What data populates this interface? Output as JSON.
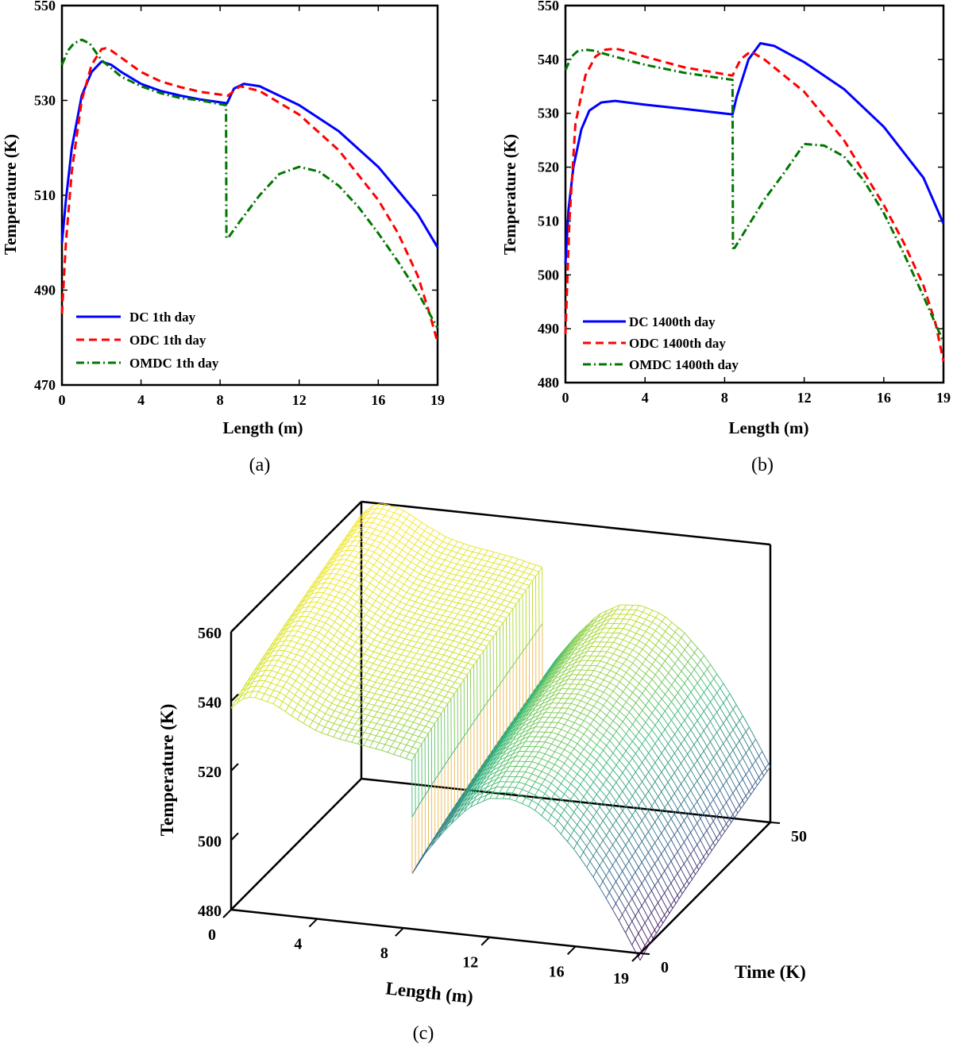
{
  "chart_data": [
    {
      "type": "line",
      "panel": "a",
      "caption": "(a)",
      "xlabel": "Length (m)",
      "ylabel": "Temperature (K)",
      "xlim": [
        0,
        19
      ],
      "ylim": [
        470,
        550
      ],
      "xticks": [
        0,
        4,
        8,
        12,
        16,
        19
      ],
      "yticks": [
        470,
        490,
        510,
        530,
        550
      ],
      "legend_position": "bottom-left",
      "series": [
        {
          "name": "DC 1th day",
          "color": "#0000ff",
          "style": "solid",
          "x": [
            0,
            0.2,
            0.5,
            1,
            1.5,
            2,
            2.5,
            3,
            4,
            5,
            6,
            7,
            8.35,
            8.7,
            9.2,
            10,
            12,
            14,
            16,
            18,
            19
          ],
          "y": [
            500,
            509,
            520,
            531,
            536,
            538.2,
            537.5,
            536,
            533.5,
            532,
            531,
            530.2,
            529.4,
            532.5,
            533.5,
            533,
            529,
            523.5,
            516,
            506,
            499
          ]
        },
        {
          "name": "ODC 1th day",
          "color": "#ff0000",
          "style": "dashed",
          "x": [
            0,
            0.2,
            0.5,
            1,
            1.5,
            2,
            2.2,
            2.5,
            3,
            4,
            5,
            6,
            7,
            8.4,
            9,
            10,
            12,
            14,
            16,
            17,
            18,
            18.6,
            19
          ],
          "y": [
            485,
            500,
            515,
            530,
            537.5,
            540.8,
            541,
            540.5,
            539,
            536,
            534,
            532.8,
            531.8,
            531,
            533,
            532,
            527,
            519.5,
            509,
            502,
            493,
            485,
            479
          ]
        },
        {
          "name": "OMDC 1th day",
          "color": "#007700",
          "style": "dashdot",
          "x": [
            0,
            0.3,
            0.6,
            1,
            1.4,
            2,
            3,
            4,
            5,
            6,
            7,
            8.3,
            8.32,
            8.4,
            9,
            10,
            11,
            12,
            13,
            14,
            15,
            16,
            17,
            18,
            19
          ],
          "y": [
            537.5,
            540.5,
            542,
            542.8,
            542,
            538.5,
            535,
            533,
            531.5,
            530.5,
            530,
            529,
            501,
            501,
            504.5,
            510,
            514.5,
            516,
            515,
            512,
            507.5,
            502,
            496,
            489.5,
            482
          ]
        }
      ]
    },
    {
      "type": "line",
      "panel": "b",
      "caption": "(b)",
      "xlabel": "Length (m)",
      "ylabel": "Temperature (K)",
      "xlim": [
        0,
        19
      ],
      "ylim": [
        480,
        550
      ],
      "xticks": [
        0,
        4,
        8,
        12,
        16,
        19
      ],
      "yticks": [
        480,
        490,
        500,
        510,
        520,
        530,
        540,
        550
      ],
      "legend_position": "bottom-left",
      "series": [
        {
          "name": "DC 1400th day",
          "color": "#0000ff",
          "style": "solid",
          "x": [
            0,
            0.15,
            0.4,
            0.8,
            1.2,
            1.8,
            2.5,
            4,
            6,
            8.4,
            8.6,
            9.2,
            9.8,
            10.5,
            12,
            14,
            16,
            18,
            19
          ],
          "y": [
            502,
            512,
            520,
            527,
            530.5,
            532,
            532.3,
            531.6,
            530.8,
            529.8,
            533,
            540,
            543,
            542.5,
            539.5,
            534.5,
            527.5,
            518,
            509.5
          ]
        },
        {
          "name": "ODC 1400th day",
          "color": "#ff0000",
          "style": "dashed",
          "x": [
            0,
            0.2,
            0.5,
            1,
            1.5,
            2,
            2.5,
            3,
            4,
            6,
            8.4,
            8.8,
            9.3,
            10,
            12,
            14,
            16,
            17,
            18,
            18.6,
            19
          ],
          "y": [
            489,
            510,
            528,
            537,
            540.5,
            541.8,
            542,
            541.6,
            540.5,
            538.5,
            537,
            540,
            541.5,
            540,
            534,
            525,
            513,
            506,
            498,
            491,
            484
          ]
        },
        {
          "name": "OMDC 1400th day",
          "color": "#007700",
          "style": "dashdot",
          "x": [
            0,
            0.3,
            0.6,
            1,
            1.5,
            2,
            3,
            4,
            6,
            8.4,
            8.42,
            8.5,
            9,
            10,
            11,
            12,
            13,
            14,
            15,
            16,
            17,
            18,
            19
          ],
          "y": [
            538,
            540.5,
            541.5,
            541.8,
            541.6,
            541,
            540,
            539,
            537.5,
            536.2,
            505,
            505,
            508,
            514,
            519,
            524.3,
            524,
            522,
            517.5,
            511.5,
            504,
            496,
            487.5
          ]
        }
      ]
    },
    {
      "type": "surface",
      "panel": "c",
      "caption": "(c)",
      "xlabel": "Length (m)",
      "ylabel": "Time (K)",
      "zlabel": "Temperature (K)",
      "xlim": [
        0,
        19
      ],
      "ylim": [
        0,
        50
      ],
      "zlim": [
        480,
        560
      ],
      "xticks": [
        0,
        4,
        8,
        12,
        16,
        19
      ],
      "yticks": [
        0,
        50
      ],
      "zticks": [
        480,
        500,
        520,
        540,
        560
      ],
      "colormap": [
        "#440154",
        "#31688e",
        "#35b779",
        "#c8e020",
        "#fde725"
      ],
      "profile": {
        "x": [
          0,
          0.5,
          1,
          2,
          3,
          4,
          5,
          6,
          7,
          8.4,
          8.42,
          9,
          10,
          11,
          12,
          13,
          14,
          15,
          16,
          17,
          18,
          19
        ],
        "z": [
          538,
          541,
          542,
          540.5,
          537,
          534,
          532.5,
          531.5,
          530.5,
          528.5,
          496,
          502,
          510,
          516.5,
          520,
          520.5,
          518.5,
          514,
          507.5,
          499,
          489,
          478
        ]
      },
      "time_rise": 18
    }
  ]
}
